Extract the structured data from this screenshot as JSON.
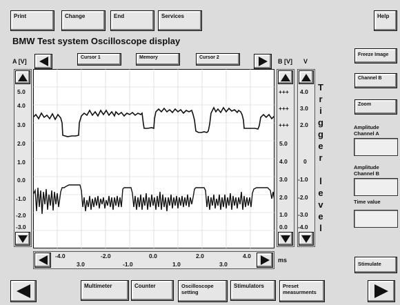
{
  "menu": {
    "print": "Print",
    "change": "Change",
    "end": "End",
    "services": "Services",
    "help": "Help"
  },
  "title": "BMW  Test system  Oscilloscope display",
  "axis": {
    "a_label": "A [V]",
    "b_label": "B [V]",
    "v_label": "V",
    "unit_ms": "ms"
  },
  "top_tabs": {
    "cursor1": "Cursor 1",
    "memory": "Memory",
    "cursor2": "Cursor 2"
  },
  "scale_a": [
    "5.0",
    "4.0",
    "3.0",
    "2.0",
    "1.0",
    "0.0",
    "-1.0",
    "-2.0",
    "-3.0"
  ],
  "scale_b": [
    "+++",
    "+++",
    "+++",
    "5.0",
    "4.0",
    "3.0",
    "2.0",
    "1.0",
    "0.0"
  ],
  "scale_v": [
    "4.0",
    "3.0",
    "2.0",
    "0",
    "-1.0",
    "-2.0",
    "-3.0",
    "-4.0"
  ],
  "x_top": [
    "-4.0",
    "-2.0",
    "0.0",
    "2.0",
    "4.0"
  ],
  "x_bottom": [
    "3.0",
    "-1.0",
    "1.0",
    "3.0"
  ],
  "trigger_word": "Trigger",
  "level_word": "level",
  "right_panel": {
    "freeze": "Freeze Image",
    "channel_b": "Channel B",
    "zoom": "Zoom",
    "amp_a": "Amplitude Channel A",
    "amp_b": "Amplitude Channel B",
    "time_value": "Time value",
    "stimulate": "Stimulate"
  },
  "bottom": {
    "multimeter": "Multimeter",
    "counter": "Counter",
    "osc_setting": "Oscilloscope setting",
    "stimulators": "Stimulators",
    "preset": "Preset measurments"
  },
  "colors": {
    "background": "#dcdcdc",
    "plot_bg": "#ffffff",
    "trace": "#111111",
    "grid": "#cfcfcf"
  },
  "icons": [
    "arrow-left-icon",
    "arrow-right-icon",
    "arrow-up-icon",
    "arrow-down-icon"
  ]
}
